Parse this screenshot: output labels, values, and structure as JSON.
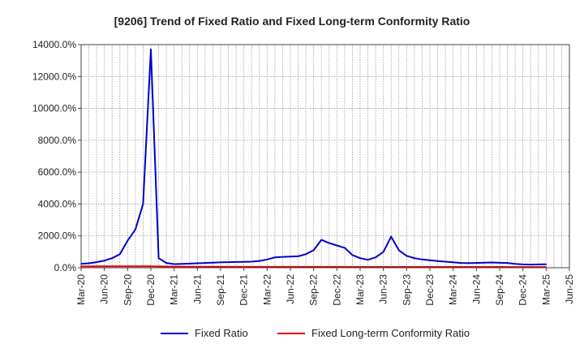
{
  "chart_data": {
    "type": "line",
    "title": "[9206]  Trend of Fixed Ratio and Fixed Long-term Conformity Ratio",
    "xlabel": "",
    "ylabel": "",
    "ylim": [
      0,
      14000
    ],
    "y_ticks": [
      0,
      2000,
      4000,
      6000,
      8000,
      10000,
      12000,
      14000
    ],
    "y_tick_labels": [
      "0.0%",
      "2000.0%",
      "4000.0%",
      "6000.0%",
      "8000.0%",
      "10000.0%",
      "12000.0%",
      "14000.0%"
    ],
    "x_range_months": [
      0,
      63
    ],
    "x_tick_months": [
      0,
      3,
      6,
      9,
      12,
      15,
      18,
      21,
      24,
      27,
      30,
      33,
      36,
      39,
      42,
      45,
      48,
      51,
      54,
      57,
      60,
      63
    ],
    "x_tick_labels": [
      "Mar-20",
      "Jun-20",
      "Sep-20",
      "Dec-20",
      "Mar-21",
      "Jun-21",
      "Sep-21",
      "Dec-21",
      "Mar-22",
      "Jun-22",
      "Sep-22",
      "Dec-22",
      "Mar-23",
      "Jun-23",
      "Sep-23",
      "Dec-23",
      "Mar-24",
      "Jun-24",
      "Sep-24",
      "Dec-24",
      "Mar-25",
      "Jun-25"
    ],
    "grid": true,
    "legend_position": "bottom",
    "series": [
      {
        "name": "Fixed Ratio",
        "color": "#0000cc",
        "x": [
          0,
          1,
          2,
          3,
          4,
          5,
          6,
          7,
          8,
          9,
          10,
          11,
          12,
          13,
          14,
          15,
          16,
          17,
          18,
          19,
          20,
          21,
          22,
          23,
          24,
          25,
          26,
          27,
          28,
          29,
          30,
          31,
          32,
          33,
          34,
          35,
          36,
          37,
          38,
          39,
          40,
          41,
          42,
          43,
          44,
          45,
          46,
          47,
          48,
          49,
          50,
          51,
          52,
          53,
          54,
          55,
          56,
          57,
          58,
          59,
          60
        ],
        "values": [
          250,
          280,
          350,
          450,
          600,
          850,
          1700,
          2400,
          4000,
          13700,
          600,
          300,
          230,
          240,
          260,
          280,
          300,
          320,
          340,
          350,
          360,
          370,
          380,
          430,
          520,
          650,
          680,
          700,
          720,
          850,
          1100,
          1750,
          1550,
          1400,
          1250,
          800,
          600,
          500,
          650,
          1000,
          1950,
          1100,
          750,
          600,
          520,
          470,
          420,
          380,
          340,
          300,
          290,
          300,
          320,
          330,
          310,
          300,
          240,
          210,
          200,
          210,
          220
        ]
      },
      {
        "name": "Fixed Long-term Conformity Ratio",
        "color": "#dd0000",
        "x": [
          0,
          3,
          6,
          9,
          12,
          15,
          18,
          21,
          24,
          27,
          30,
          33,
          36,
          39,
          42,
          45,
          48,
          51,
          54,
          57,
          60
        ],
        "values": [
          80,
          85,
          90,
          90,
          70,
          65,
          60,
          58,
          55,
          55,
          55,
          55,
          52,
          52,
          52,
          50,
          50,
          50,
          50,
          48,
          48
        ]
      }
    ]
  }
}
